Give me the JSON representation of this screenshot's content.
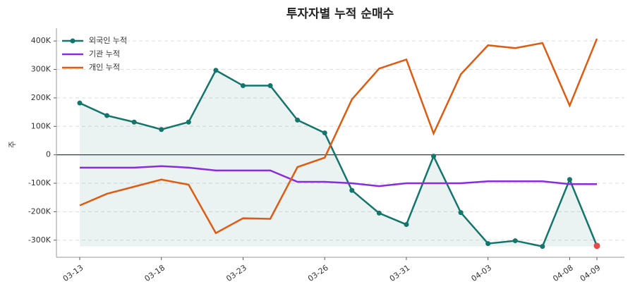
{
  "chart_data": {
    "type": "line",
    "title": "투자자별 누적 순매수",
    "y_label": "주",
    "categories": [
      "03-13",
      null,
      null,
      "03-18",
      null,
      null,
      "03-23",
      null,
      null,
      "03-26",
      null,
      null,
      "03-31",
      null,
      null,
      "04-03",
      null,
      null,
      "04-08",
      "04-09"
    ],
    "series": [
      {
        "name": "외국인 누적",
        "color": "#13756b",
        "markers": true,
        "fill": true,
        "values": [
          182000,
          138000,
          115000,
          89000,
          115000,
          297000,
          243000,
          243000,
          122000,
          77000,
          -125000,
          -205000,
          -245000,
          -5000,
          -203000,
          -312000,
          -302000,
          -322000,
          -87000,
          -320000
        ]
      },
      {
        "name": "기관 누적",
        "color": "#8a2be2",
        "values": [
          -45000,
          -45000,
          -45000,
          -40000,
          -45000,
          -55000,
          -55000,
          -55000,
          -95000,
          -95000,
          -100000,
          -110000,
          -100000,
          -100000,
          -100000,
          -93000,
          -93000,
          -93000,
          -103000,
          -103000
        ]
      },
      {
        "name": "개인 누적",
        "color": "#e05a10",
        "values": [
          -178000,
          -137000,
          -112000,
          -87000,
          -105000,
          -275000,
          -223000,
          -225000,
          -43000,
          -10000,
          195000,
          303000,
          335000,
          75000,
          283000,
          385000,
          375000,
          393000,
          173000,
          408000
        ]
      }
    ],
    "highlight_last_color": "#e84a4a",
    "ylim": [
      -360000,
      445000
    ],
    "yticks": [
      {
        "value": -300000,
        "label": "-300K"
      },
      {
        "value": -200000,
        "label": "-200K"
      },
      {
        "value": -100000,
        "label": "-100K"
      },
      0,
      {
        "value": 100000,
        "label": "100K"
      },
      {
        "value": 200000,
        "label": "200K"
      },
      {
        "value": 300000,
        "label": "300K"
      },
      {
        "value": 400000,
        "label": "400K"
      }
    ],
    "grid": true,
    "legend": "upper-left"
  }
}
